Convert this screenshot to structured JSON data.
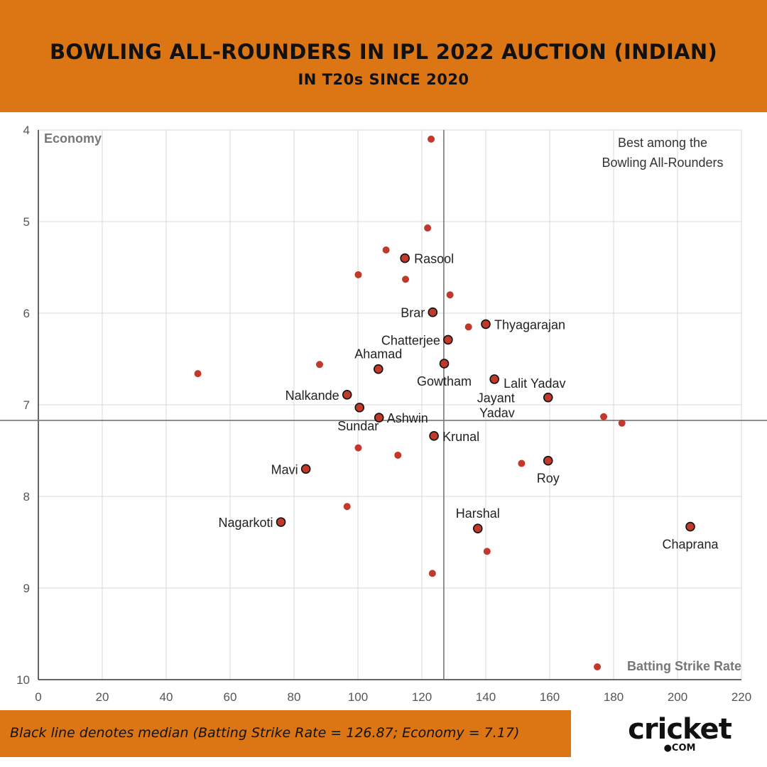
{
  "header": {
    "title": "BOWLING ALL-ROUNDERS IN IPL 2022 AUCTION (INDIAN)",
    "subtitle": "IN T20s SINCE 2020"
  },
  "footer": {
    "note": "Black line denotes median (Batting Strike Rate = 126.87; Economy = 7.17)"
  },
  "logo": {
    "main": "cricket",
    "sub": "●COM"
  },
  "colors": {
    "header_bg": "#dc7614",
    "point_fill": "#c0392b",
    "point_outline": "#111111",
    "grid": "#d9d9d9",
    "median_line": "#777777"
  },
  "chart_data": {
    "type": "scatter",
    "title": "",
    "xlabel": "Batting Strike Rate",
    "ylabel": "Economy",
    "xlim": [
      0,
      220
    ],
    "ylim": [
      4,
      10
    ],
    "y_inverted": true,
    "x_ticks": [
      0,
      20,
      40,
      60,
      80,
      100,
      120,
      140,
      160,
      180,
      200,
      220
    ],
    "y_ticks": [
      4,
      5,
      6,
      7,
      8,
      9,
      10
    ],
    "grid": true,
    "median": {
      "x": 126.87,
      "y": 7.17
    },
    "quadrant_note": "Best among the\nBowling All-Rounders",
    "labeled_points": [
      {
        "name": "Rasool",
        "x": 114.7,
        "y": 5.4
      },
      {
        "name": "Brar",
        "x": 123.4,
        "y": 5.99
      },
      {
        "name": "Thyagarajan",
        "x": 140.0,
        "y": 6.12
      },
      {
        "name": "Chatterjee",
        "x": 128.2,
        "y": 6.29
      },
      {
        "name": "Ahamad",
        "x": 106.4,
        "y": 6.61
      },
      {
        "name": "Gowtham",
        "x": 127.0,
        "y": 6.55
      },
      {
        "name": "Lalit Yadav",
        "x": 142.7,
        "y": 6.72
      },
      {
        "name": "Nalkande",
        "x": 96.6,
        "y": 6.89
      },
      {
        "name": "Jayant Yadav",
        "x": 159.5,
        "y": 6.92
      },
      {
        "name": "Sundar",
        "x": 100.5,
        "y": 7.03
      },
      {
        "name": "Ashwin",
        "x": 106.6,
        "y": 7.14
      },
      {
        "name": "Krunal",
        "x": 123.8,
        "y": 7.34
      },
      {
        "name": "Mavi",
        "x": 83.7,
        "y": 7.7
      },
      {
        "name": "Roy",
        "x": 159.5,
        "y": 7.61
      },
      {
        "name": "Nagarkoti",
        "x": 75.9,
        "y": 8.28
      },
      {
        "name": "Harshal",
        "x": 137.5,
        "y": 8.35
      },
      {
        "name": "Chaprana",
        "x": 204.0,
        "y": 8.33
      }
    ],
    "unlabeled_points": [
      {
        "x": 122.9,
        "y": 4.1
      },
      {
        "x": 121.8,
        "y": 5.07
      },
      {
        "x": 108.8,
        "y": 5.31
      },
      {
        "x": 100.1,
        "y": 5.58
      },
      {
        "x": 114.9,
        "y": 5.63
      },
      {
        "x": 128.8,
        "y": 5.8
      },
      {
        "x": 134.6,
        "y": 6.15
      },
      {
        "x": 49.9,
        "y": 6.66
      },
      {
        "x": 88.0,
        "y": 6.56
      },
      {
        "x": 176.9,
        "y": 7.13
      },
      {
        "x": 182.6,
        "y": 7.2
      },
      {
        "x": 100.1,
        "y": 7.47
      },
      {
        "x": 112.5,
        "y": 7.55
      },
      {
        "x": 151.2,
        "y": 7.64
      },
      {
        "x": 96.6,
        "y": 8.11
      },
      {
        "x": 140.4,
        "y": 8.6
      },
      {
        "x": 123.3,
        "y": 8.84
      },
      {
        "x": 174.9,
        "y": 9.86
      }
    ]
  }
}
